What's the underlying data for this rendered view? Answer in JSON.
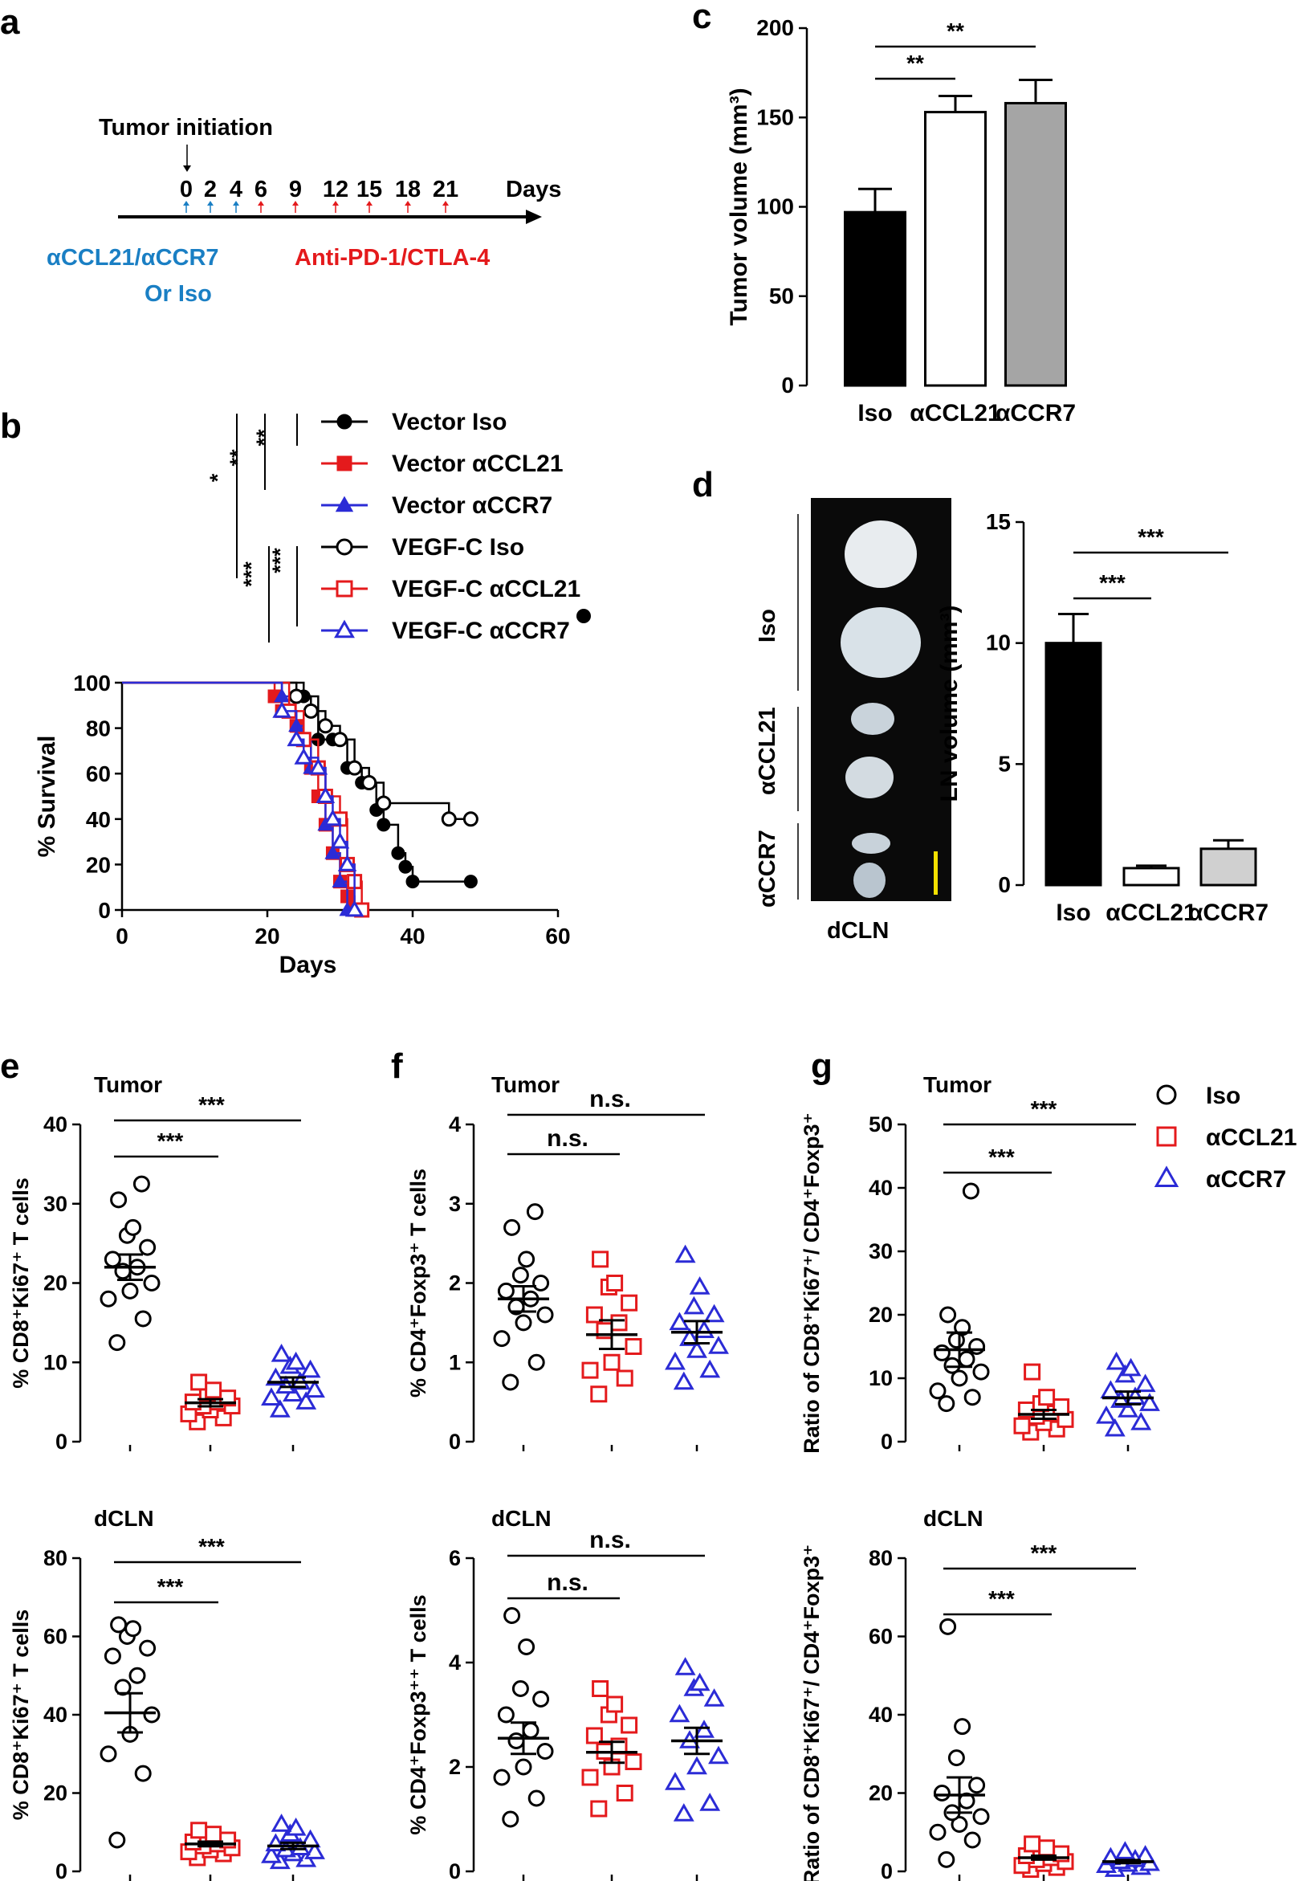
{
  "panels": {
    "a": {
      "letter": "a",
      "event_label": "Tumor initiation",
      "days_label": "Days",
      "ticks": [
        "0",
        "2",
        "4",
        "6",
        "9",
        "12",
        "15",
        "18",
        "21"
      ],
      "blue_label_1": "αCCL21/αCCR7",
      "blue_label_2": "Or Iso",
      "red_label": "Anti-PD-1/CTLA-4",
      "blue_color": "#1a7fc4",
      "red_color": "#e41a1c"
    },
    "b": {
      "letter": "b",
      "sig_group1": [
        "*",
        "**",
        "**"
      ],
      "sig_group2": [
        "***",
        "***"
      ]
    },
    "c": {
      "letter": "c"
    },
    "d": {
      "letter": "d",
      "photo_labels": [
        "Iso",
        "αCCL21",
        "αCCR7"
      ],
      "photo_caption": "dCLN"
    },
    "e": {
      "letter": "e"
    },
    "f": {
      "letter": "f"
    },
    "g": {
      "letter": "g",
      "legend": [
        {
          "label": "Iso",
          "marker": "circle",
          "color": "#000000"
        },
        {
          "label": "αCCL21",
          "marker": "square",
          "color": "#e41a1c"
        },
        {
          "label": "αCCR7",
          "marker": "triangle",
          "color": "#2b2bd6"
        }
      ]
    }
  },
  "chart_data": [
    {
      "id": "b",
      "type": "line",
      "title": "",
      "xlabel": "Days",
      "ylabel": "% Survival",
      "xlim": [
        0,
        60
      ],
      "ylim": [
        0,
        100
      ],
      "xticks": [
        "0",
        "20",
        "40",
        "60"
      ],
      "yticks": [
        "0",
        "20",
        "40",
        "60",
        "80",
        "100"
      ],
      "series": [
        {
          "name": "Vector Iso",
          "marker": "filled-circle",
          "color": "#000000",
          "x": [
            0,
            25,
            27,
            29,
            31,
            33,
            35,
            36,
            38,
            39,
            40,
            48
          ],
          "y": [
            100,
            94,
            75,
            75,
            62.5,
            56,
            44,
            37.5,
            25,
            19,
            12.5,
            12.5
          ]
        },
        {
          "name": "Vector αCCL21",
          "marker": "filled-square",
          "color": "#e41a1c",
          "x": [
            0,
            21,
            22,
            24,
            25,
            26,
            27,
            28,
            29,
            30,
            31,
            32
          ],
          "y": [
            100,
            94,
            87.5,
            81,
            75,
            62.5,
            50,
            37.5,
            25,
            12.5,
            6,
            0
          ]
        },
        {
          "name": "Vector αCCR7",
          "marker": "filled-triangle",
          "color": "#2b2bd6",
          "x": [
            0,
            22,
            23,
            24,
            25,
            26,
            28,
            29,
            30,
            31
          ],
          "y": [
            100,
            94,
            87.5,
            81,
            75,
            62.5,
            37.5,
            25,
            12.5,
            0
          ]
        },
        {
          "name": "VEGF-C Iso",
          "marker": "open-circle",
          "color": "#000000",
          "x": [
            0,
            24,
            26,
            28,
            30,
            32,
            34,
            36,
            45,
            48
          ],
          "y": [
            100,
            94,
            87.5,
            81,
            75,
            62.5,
            56,
            47,
            40,
            40
          ]
        },
        {
          "name": "VEGF-C αCCL21",
          "marker": "open-square",
          "color": "#e41a1c",
          "x": [
            0,
            23,
            25,
            27,
            28,
            30,
            31,
            32,
            33
          ],
          "y": [
            100,
            87.5,
            75,
            62.5,
            50,
            40,
            20,
            12.5,
            0
          ]
        },
        {
          "name": "VEGF-C αCCR7",
          "marker": "open-triangle",
          "color": "#2b2bd6",
          "x": [
            0,
            22,
            24,
            25,
            27,
            28,
            29,
            30,
            31,
            32
          ],
          "y": [
            100,
            87.5,
            75,
            67,
            62.5,
            50,
            40,
            30,
            20,
            0
          ]
        }
      ]
    },
    {
      "id": "c",
      "type": "bar",
      "categories": [
        "Iso",
        "αCCL21",
        "αCCR7"
      ],
      "values": [
        97,
        153,
        158
      ],
      "errors": [
        13,
        9,
        13
      ],
      "colors": [
        "#000000",
        "#ffffff",
        "#a5a5a5"
      ],
      "ylabel": "Tumor volume (mm³)",
      "ylim": [
        0,
        200
      ],
      "yticks": [
        "0",
        "50",
        "100",
        "150",
        "200"
      ],
      "significance": [
        {
          "pair": [
            0,
            1
          ],
          "label": "**"
        },
        {
          "pair": [
            0,
            2
          ],
          "label": "**"
        }
      ]
    },
    {
      "id": "d",
      "type": "bar",
      "categories": [
        "Iso",
        "αCCL21",
        "αCCR7"
      ],
      "values": [
        10,
        0.7,
        1.5
      ],
      "errors": [
        1.2,
        0.1,
        0.35
      ],
      "colors": [
        "#000000",
        "#ffffff",
        "#d0d0d0"
      ],
      "ylabel": "LN volume (mm³)",
      "ylim": [
        0,
        15
      ],
      "yticks": [
        "0",
        "5",
        "10",
        "15"
      ],
      "significance": [
        {
          "pair": [
            0,
            1
          ],
          "label": "***"
        },
        {
          "pair": [
            0,
            2
          ],
          "label": "***"
        }
      ]
    },
    {
      "id": "e-tumor",
      "type": "scatter",
      "title": "Tumor",
      "ylabel": "% CD8⁺Ki67⁺ T cells",
      "ylim": [
        0,
        40
      ],
      "yticks": [
        "0",
        "10",
        "20",
        "30",
        "40"
      ],
      "groups": [
        {
          "name": "Iso",
          "values": [
            32.5,
            30.5,
            27,
            26,
            24.5,
            23,
            22,
            21.5,
            20,
            19,
            18,
            15.5,
            12.5
          ],
          "mean": 22,
          "sem": 1.6
        },
        {
          "name": "αCCL21",
          "values": [
            7.5,
            6.5,
            6,
            5.5,
            5,
            5,
            4.5,
            4.5,
            4,
            3.5,
            3,
            2.5
          ],
          "mean": 4.9,
          "sem": 0.45
        },
        {
          "name": "αCCR7",
          "values": [
            11,
            10,
            9.5,
            9,
            8,
            7.5,
            7,
            6.5,
            6,
            5.5,
            5,
            4
          ],
          "mean": 7.5,
          "sem": 0.6
        }
      ],
      "significance": [
        {
          "pair": [
            0,
            1
          ],
          "label": "***"
        },
        {
          "pair": [
            0,
            2
          ],
          "label": "***"
        }
      ]
    },
    {
      "id": "f-tumor",
      "type": "scatter",
      "title": "Tumor",
      "ylabel": "% CD4⁺Foxp3⁺ T cells",
      "ylim": [
        0,
        4
      ],
      "yticks": [
        "0",
        "1",
        "2",
        "3",
        "4"
      ],
      "groups": [
        {
          "name": "Iso",
          "values": [
            2.9,
            2.7,
            2.3,
            2.1,
            2.0,
            1.9,
            1.8,
            1.7,
            1.6,
            1.5,
            1.3,
            1.0,
            0.75
          ],
          "mean": 1.8,
          "sem": 0.16
        },
        {
          "name": "αCCL21",
          "values": [
            2.3,
            2.0,
            1.95,
            1.75,
            1.6,
            1.5,
            1.4,
            1.2,
            1.0,
            0.9,
            0.8,
            0.6
          ],
          "mean": 1.35,
          "sem": 0.18
        },
        {
          "name": "αCCR7",
          "values": [
            2.35,
            1.95,
            1.7,
            1.6,
            1.5,
            1.4,
            1.3,
            1.2,
            1.15,
            1.0,
            0.9,
            0.75
          ],
          "mean": 1.38,
          "sem": 0.14
        }
      ],
      "significance": [
        {
          "pair": [
            0,
            1
          ],
          "label": "n.s."
        },
        {
          "pair": [
            0,
            2
          ],
          "label": "n.s."
        }
      ]
    },
    {
      "id": "g-tumor",
      "type": "scatter",
      "title": "Tumor",
      "ylabel": "Ratio of CD8⁺Ki67⁺/ CD4⁺Foxp3⁺",
      "ylim": [
        0,
        50
      ],
      "yticks": [
        "0",
        "10",
        "20",
        "30",
        "40",
        "50"
      ],
      "groups": [
        {
          "name": "Iso",
          "values": [
            39.5,
            20,
            18,
            16,
            15,
            14,
            13,
            12,
            11,
            10,
            8,
            7,
            6
          ],
          "mean": 14.5,
          "sem": 2.7
        },
        {
          "name": "αCCL21",
          "values": [
            11,
            7,
            6,
            5.5,
            5,
            4.5,
            4,
            3.5,
            3,
            2.5,
            2,
            1.5
          ],
          "mean": 4.3,
          "sem": 0.7
        },
        {
          "name": "αCCR7",
          "values": [
            12.5,
            11.5,
            10.5,
            9,
            8,
            7,
            6.5,
            6,
            5,
            4,
            3,
            2
          ],
          "mean": 6.9,
          "sem": 1.0
        }
      ],
      "significance": [
        {
          "pair": [
            0,
            1
          ],
          "label": "***"
        },
        {
          "pair": [
            0,
            2
          ],
          "label": "***"
        }
      ]
    },
    {
      "id": "e-dcln",
      "type": "scatter",
      "title": "dCLN",
      "ylabel": "% CD8⁺Ki67⁺ T cells",
      "ylim": [
        0,
        80
      ],
      "yticks": [
        "0",
        "20",
        "40",
        "60",
        "80"
      ],
      "groups": [
        {
          "name": "Iso",
          "values": [
            63,
            62,
            60,
            57,
            55,
            50,
            47,
            40,
            35,
            30,
            25,
            8
          ],
          "mean": 40.5,
          "sem": 5
        },
        {
          "name": "αCCL21",
          "values": [
            10.5,
            9.5,
            9,
            8,
            7.5,
            7,
            6.5,
            6,
            5.5,
            5,
            4.5,
            3.5
          ],
          "mean": 7,
          "sem": 0.6
        },
        {
          "name": "αCCR7",
          "values": [
            12,
            11,
            9.5,
            8,
            7,
            6,
            5.5,
            5,
            4.5,
            4,
            3,
            2.5
          ],
          "mean": 6.5,
          "sem": 0.8
        }
      ],
      "significance": [
        {
          "pair": [
            0,
            1
          ],
          "label": "***"
        },
        {
          "pair": [
            0,
            2
          ],
          "label": "***"
        }
      ]
    },
    {
      "id": "f-dcln",
      "type": "scatter",
      "title": "dCLN",
      "ylabel": "% CD4⁺Foxp3⁺⁺ T cells",
      "ylim": [
        0,
        6
      ],
      "yticks": [
        "0",
        "2",
        "4",
        "6"
      ],
      "groups": [
        {
          "name": "Iso",
          "values": [
            4.9,
            4.3,
            3.5,
            3.3,
            3.0,
            2.7,
            2.5,
            2.3,
            2.0,
            1.8,
            1.4,
            1.0
          ],
          "mean": 2.55,
          "sem": 0.3
        },
        {
          "name": "αCCL21",
          "values": [
            3.5,
            3.2,
            3.0,
            2.8,
            2.6,
            2.4,
            2.3,
            2.1,
            2.0,
            1.8,
            1.5,
            1.2
          ],
          "mean": 2.28,
          "sem": 0.2
        },
        {
          "name": "αCCR7",
          "values": [
            3.9,
            3.6,
            3.5,
            3.3,
            3.0,
            2.7,
            2.5,
            2.2,
            2.0,
            1.7,
            1.3,
            1.1
          ],
          "mean": 2.5,
          "sem": 0.25
        }
      ],
      "significance": [
        {
          "pair": [
            0,
            1
          ],
          "label": "n.s."
        },
        {
          "pair": [
            0,
            2
          ],
          "label": "n.s."
        }
      ]
    },
    {
      "id": "g-dcln",
      "type": "scatter",
      "title": "dCLN",
      "ylabel": "Ratio of CD8⁺Ki67⁺/ CD4⁺Foxp3⁺",
      "ylim": [
        0,
        80
      ],
      "yticks": [
        "0",
        "20",
        "40",
        "60",
        "80"
      ],
      "groups": [
        {
          "name": "Iso",
          "values": [
            62.5,
            37,
            29,
            22,
            20,
            18,
            15,
            14,
            12,
            10,
            8,
            3
          ],
          "mean": 19.5,
          "sem": 4.5
        },
        {
          "name": "αCCL21",
          "values": [
            7,
            6,
            5,
            4.5,
            4,
            3.5,
            3,
            2.5,
            2,
            1.5,
            1,
            0.5
          ],
          "mean": 3.5,
          "sem": 0.5
        },
        {
          "name": "αCCR7",
          "values": [
            5,
            4,
            3.5,
            3,
            2.5,
            2,
            1.8,
            1.5,
            1,
            0.5
          ],
          "mean": 2.5,
          "sem": 0.4
        }
      ],
      "significance": [
        {
          "pair": [
            0,
            1
          ],
          "label": "***"
        },
        {
          "pair": [
            0,
            2
          ],
          "label": "***"
        }
      ]
    }
  ]
}
